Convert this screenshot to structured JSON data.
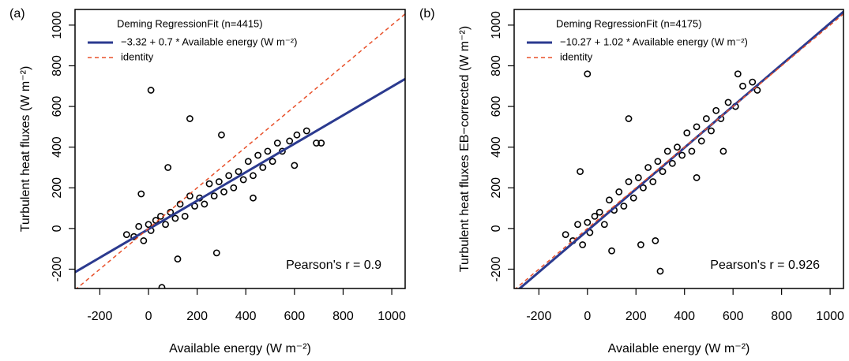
{
  "chart_data": [
    {
      "type": "scatter",
      "panel_label": "(a)",
      "legend_title": "Deming RegressionFit (n=4415)",
      "xlabel": "Available energy (W m⁻²)",
      "ylabel": "Turbulent heat fluxes (W m⁻²)",
      "annotation": "Pearson's r = 0.9",
      "xlim": [
        -302,
        1055
      ],
      "ylim": [
        -295,
        1077
      ],
      "xticks": [
        -200,
        0,
        200,
        400,
        600,
        800,
        1000
      ],
      "yticks": [
        -200,
        0,
        200,
        400,
        600,
        800,
        1000
      ],
      "points": {
        "color": "#000000",
        "x": [
          -90,
          -60,
          -40,
          -20,
          0,
          10,
          30,
          50,
          70,
          90,
          110,
          130,
          150,
          170,
          190,
          210,
          230,
          250,
          270,
          290,
          310,
          330,
          350,
          370,
          390,
          410,
          430,
          450,
          470,
          490,
          510,
          530,
          550,
          580,
          610,
          650,
          690,
          710,
          10,
          170,
          55,
          80,
          280,
          -30,
          120,
          300,
          430,
          600
        ],
        "values": [
          -30,
          -40,
          10,
          -60,
          20,
          -10,
          40,
          60,
          20,
          80,
          50,
          120,
          60,
          160,
          110,
          150,
          120,
          220,
          160,
          230,
          180,
          260,
          200,
          280,
          240,
          330,
          260,
          360,
          300,
          380,
          330,
          420,
          380,
          430,
          460,
          480,
          420,
          420,
          680,
          540,
          -290,
          300,
          -120,
          170,
          -150,
          460,
          150,
          310
        ]
      },
      "lines": [
        {
          "name": "−3.32 + 0.7 * Available energy (W m⁻²)",
          "color": "#2b3a8f",
          "dash": false,
          "x": [
            -302,
            1055
          ],
          "values": [
            -214.72,
            735.18
          ]
        },
        {
          "name": "identity",
          "color": "#e8502a",
          "dash": true,
          "x": [
            -302,
            1055
          ],
          "values": [
            -302,
            1055
          ]
        }
      ]
    },
    {
      "type": "scatter",
      "panel_label": "(b)",
      "legend_title": "Deming RegressionFit (n=4175)",
      "xlabel": "Available energy (W m⁻²)",
      "ylabel": "Turbulent heat fluxes EB−corrected (W m⁻²)",
      "annotation": "Pearson's r = 0.926",
      "xlim": [
        -302,
        1055
      ],
      "ylim": [
        -295,
        1077
      ],
      "xticks": [
        -200,
        0,
        200,
        400,
        600,
        800,
        1000
      ],
      "yticks": [
        -200,
        0,
        200,
        400,
        600,
        800,
        1000
      ],
      "points": {
        "color": "#000000",
        "x": [
          -90,
          -60,
          -40,
          -20,
          0,
          10,
          30,
          50,
          70,
          90,
          110,
          130,
          150,
          170,
          190,
          210,
          230,
          250,
          270,
          290,
          310,
          330,
          350,
          370,
          390,
          410,
          430,
          450,
          470,
          490,
          510,
          530,
          550,
          580,
          610,
          640,
          680,
          700,
          0,
          170,
          300,
          100,
          220,
          280,
          -30,
          450,
          560,
          620
        ],
        "values": [
          -30,
          -60,
          20,
          -80,
          30,
          -20,
          60,
          80,
          20,
          140,
          90,
          180,
          110,
          230,
          150,
          250,
          200,
          300,
          230,
          330,
          280,
          380,
          320,
          400,
          360,
          470,
          380,
          500,
          430,
          540,
          480,
          580,
          540,
          620,
          600,
          700,
          720,
          680,
          760,
          540,
          -210,
          -110,
          -80,
          -60,
          280,
          250,
          380,
          760
        ]
      },
      "lines": [
        {
          "name": "−10.27 + 1.02 * Available energy (W m⁻²)",
          "color": "#2b3a8f",
          "dash": false,
          "x": [
            -302,
            1055
          ],
          "values": [
            -318.31,
            1065.83
          ]
        },
        {
          "name": "identity",
          "color": "#e8502a",
          "dash": true,
          "x": [
            -302,
            1055
          ],
          "values": [
            -302,
            1055
          ]
        }
      ]
    }
  ]
}
